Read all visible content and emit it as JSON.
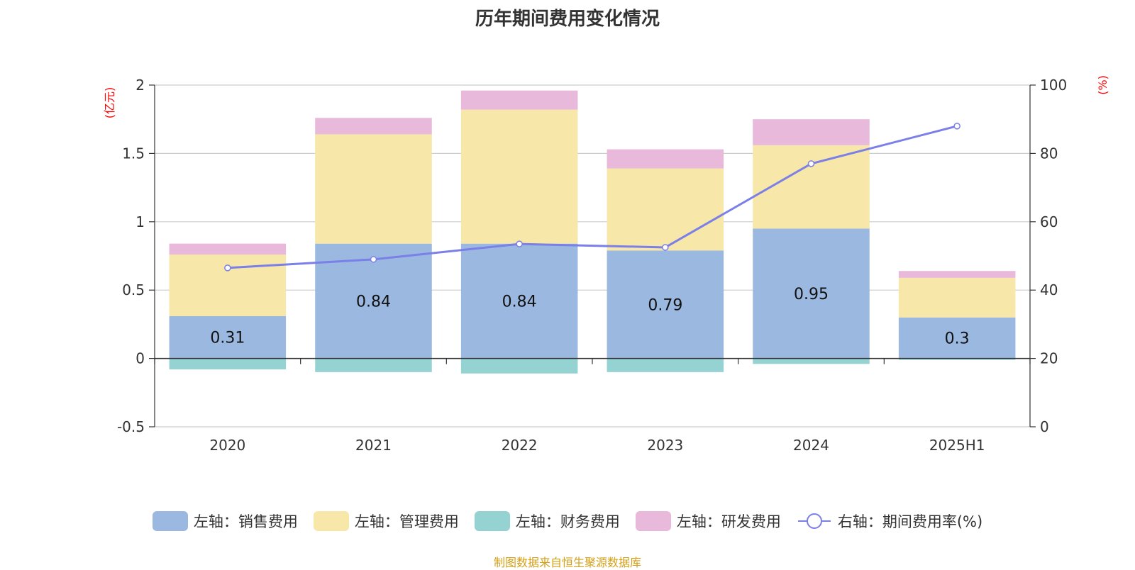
{
  "chart_data": {
    "type": "bar",
    "title": "历年期间费用变化情况",
    "categories": [
      "2020",
      "2021",
      "2022",
      "2023",
      "2024",
      "2025H1"
    ],
    "left_axis": {
      "unit": "(亿元)",
      "ylim": [
        -0.5,
        2
      ],
      "ticks": [
        "-0.5",
        "0",
        "0.5",
        "1",
        "1.5",
        "2"
      ],
      "tick_values": [
        -0.5,
        0,
        0.5,
        1,
        1.5,
        2
      ]
    },
    "right_axis": {
      "unit": "(%)",
      "ylim": [
        0,
        100
      ],
      "ticks": [
        "0",
        "20",
        "40",
        "60",
        "80",
        "100"
      ],
      "tick_values": [
        0,
        20,
        40,
        60,
        80,
        100
      ]
    },
    "series": [
      {
        "name": "左轴：销售费用",
        "type": "bar",
        "axis": "left",
        "color": "#9bb8e0",
        "values": [
          0.31,
          0.84,
          0.84,
          0.79,
          0.95,
          0.3
        ],
        "labels": [
          "0.31",
          "0.84",
          "0.84",
          "0.79",
          "0.95",
          "0.3"
        ]
      },
      {
        "name": "左轴：管理费用",
        "type": "bar",
        "axis": "left",
        "color": "#f7e7a8",
        "values": [
          0.45,
          0.8,
          0.98,
          0.6,
          0.61,
          0.29
        ]
      },
      {
        "name": "左轴：财务费用",
        "type": "bar",
        "axis": "left",
        "color": "#95d3d3",
        "values": [
          -0.08,
          -0.1,
          -0.11,
          -0.1,
          -0.04,
          -0.01
        ]
      },
      {
        "name": "左轴：研发费用",
        "type": "bar",
        "axis": "left",
        "color": "#e8b9da",
        "values": [
          0.08,
          0.12,
          0.14,
          0.14,
          0.19,
          0.05
        ]
      },
      {
        "name": "右轴：期间费用率(%)",
        "type": "line",
        "axis": "right",
        "color": "#7b7fe8",
        "values": [
          46.5,
          49,
          53.5,
          52.5,
          77,
          88
        ]
      }
    ],
    "grid": true,
    "legend_position": "bottom"
  },
  "source_text": "制图数据来自恒生聚源数据库"
}
